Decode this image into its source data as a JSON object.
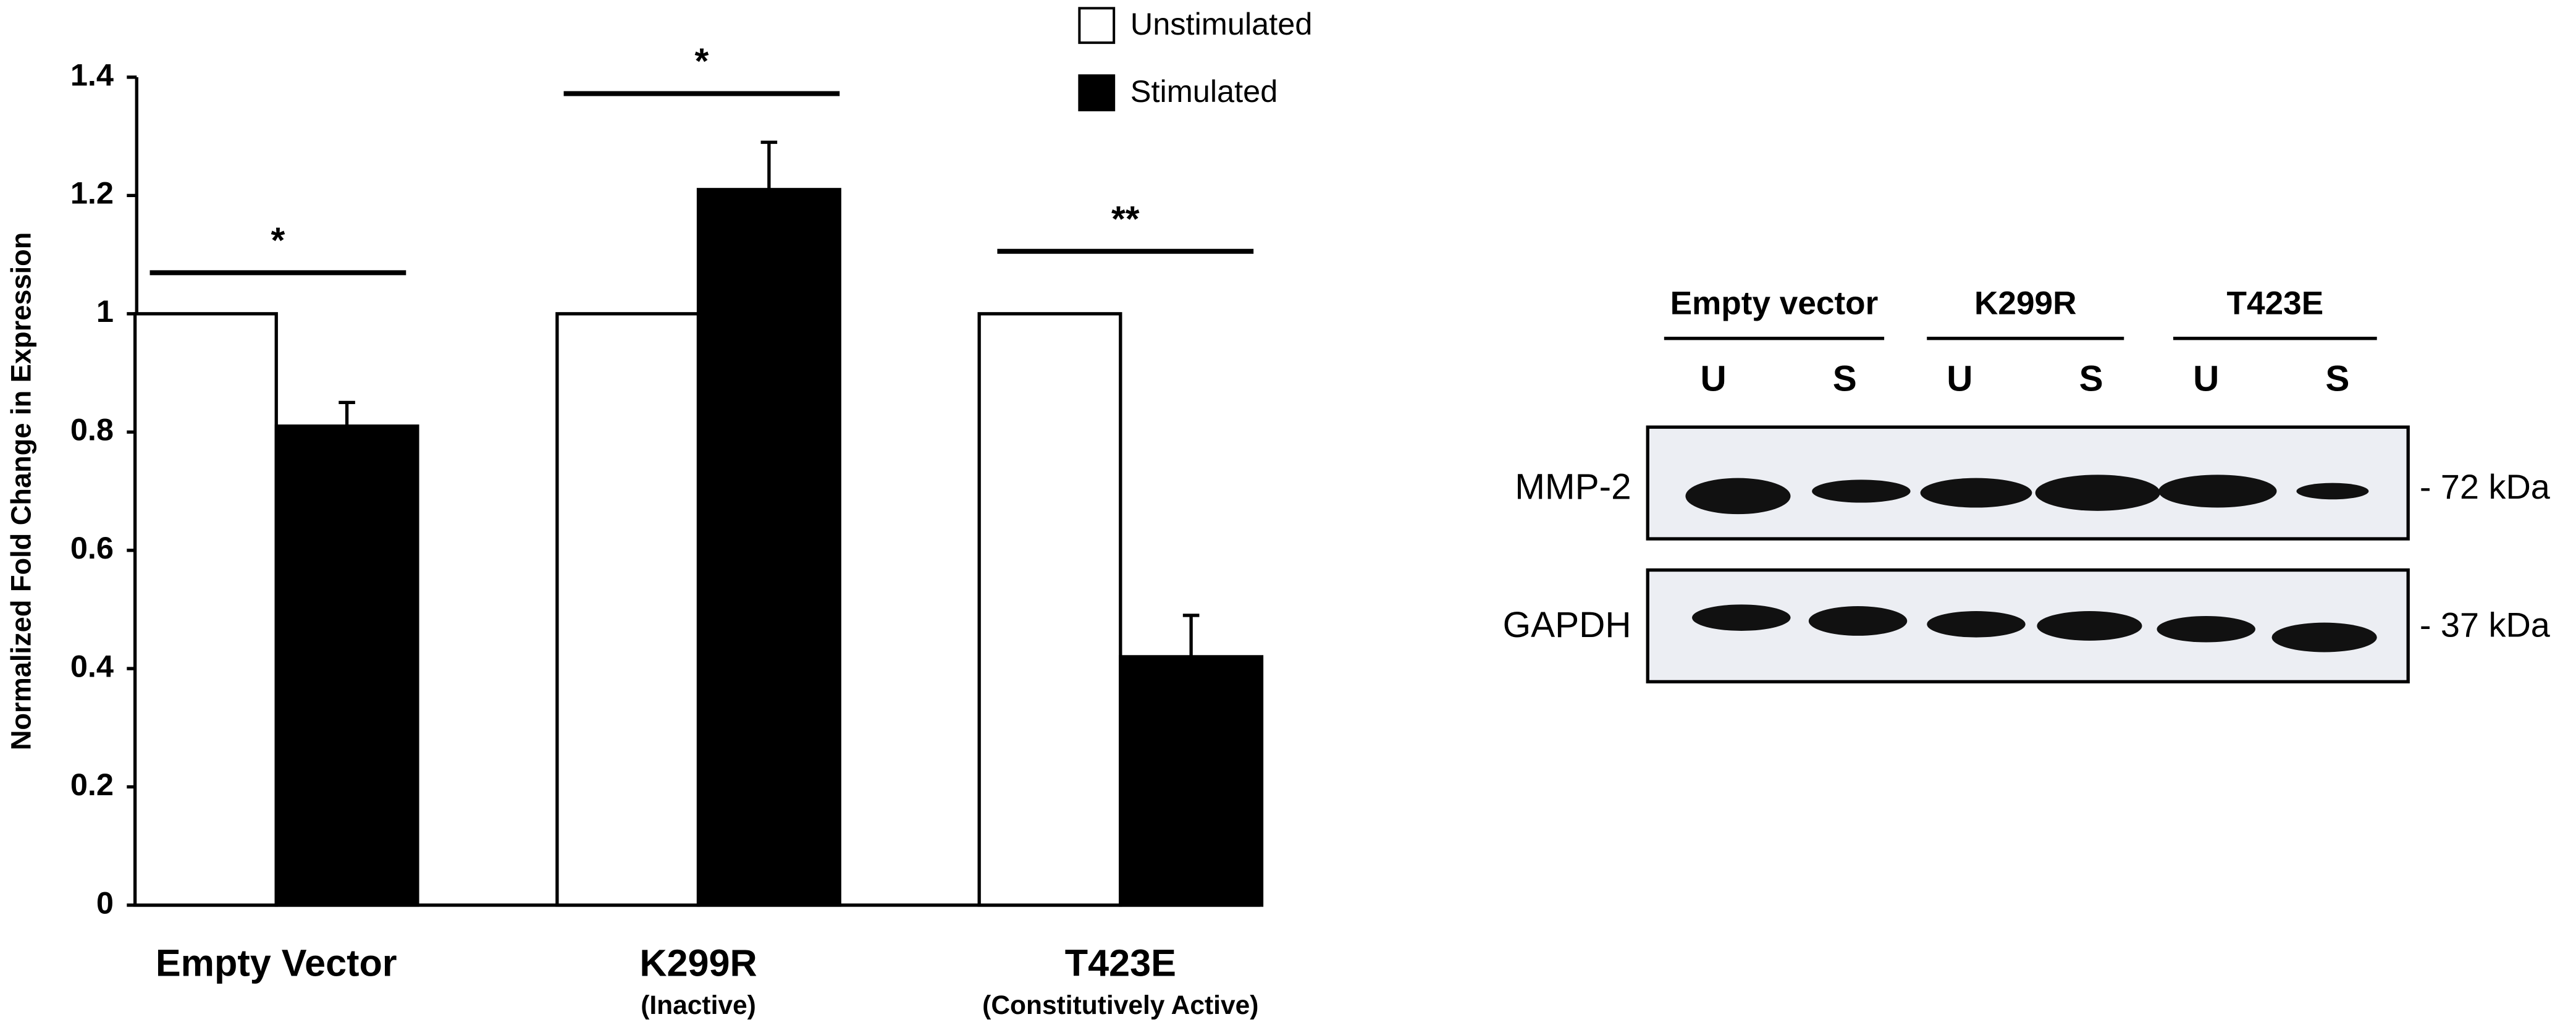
{
  "chart_data": {
    "type": "bar",
    "y_label": "Normalized Fold Change in Expression",
    "categories": [
      "Empty Vector",
      "K299R",
      "T423E"
    ],
    "category_notes": [
      null,
      "(Inactive)",
      "(Constitutively Active)"
    ],
    "series": [
      {
        "name": "Unstimulated",
        "color": "#ffffff",
        "values": [
          1,
          1,
          1
        ]
      },
      {
        "name": "Stimulated",
        "color": "#000000",
        "values": [
          0.81,
          1.21,
          0.42
        ],
        "errors": [
          0.04,
          0.08,
          0.07
        ]
      }
    ],
    "annotations": [
      "*",
      "*",
      "**"
    ],
    "ylim": [
      0,
      1.4
    ],
    "yticks": [
      0,
      0.2,
      0.4,
      0.6,
      0.8,
      1,
      1.2,
      1.4
    ],
    "grid": false,
    "legend": "top"
  },
  "blot": {
    "groups": [
      "Empty vector",
      "K299R",
      "T423E"
    ],
    "lanes": [
      "U",
      "S",
      "U",
      "S",
      "U",
      "S"
    ],
    "rows": [
      {
        "label": "MMP-2",
        "marker": "- 72 kDa"
      },
      {
        "label": "GAPDH",
        "marker": "- 37 kDa"
      }
    ]
  }
}
